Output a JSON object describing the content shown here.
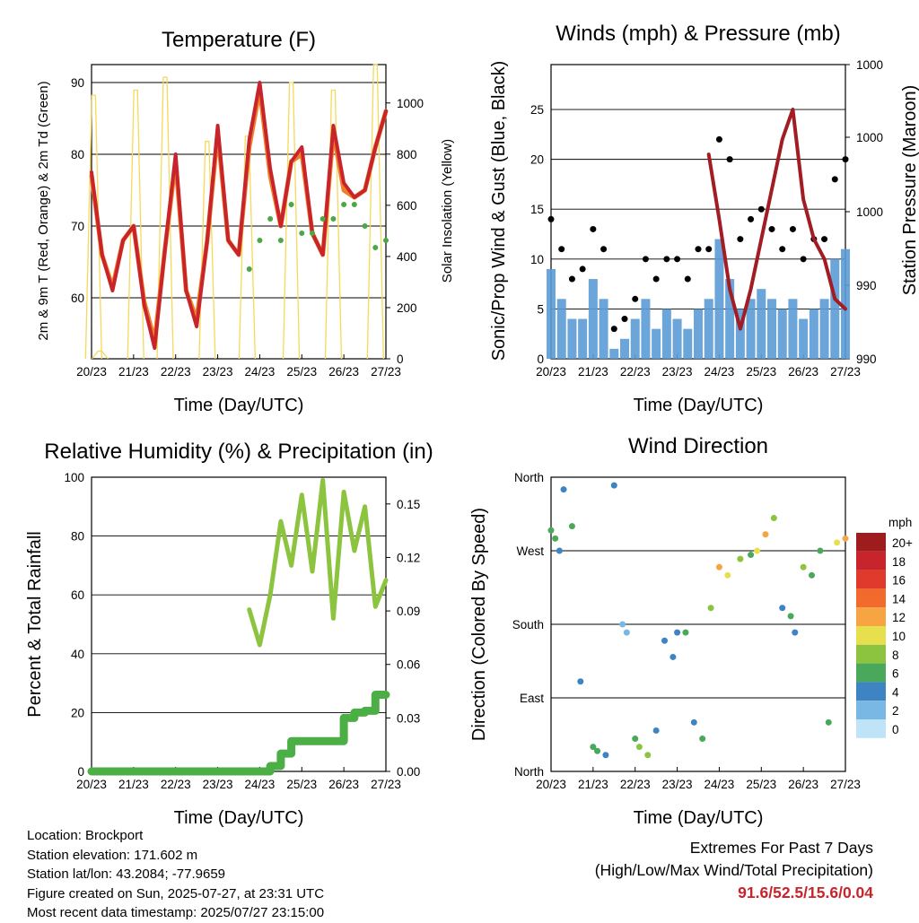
{
  "x_tick_labels": [
    "20/23",
    "21/23",
    "22/23",
    "23/23",
    "24/23",
    "25/23",
    "26/23",
    "27/23"
  ],
  "panels": {
    "temperature": {
      "title": "Temperature (F)",
      "xlabel": "Time (Day/UTC)",
      "ylabel_left": "2m & 9m T (Red, Orange) & 2m Td (Green)",
      "ylabel_right": "Solar Insolation (Yellow)",
      "left_ticks": [
        "60",
        "70",
        "80",
        "90"
      ],
      "right_ticks": [
        "0",
        "200",
        "400",
        "600",
        "800",
        "1000"
      ]
    },
    "winds": {
      "title": "Winds (mph) & Pressure (mb)",
      "xlabel": "Time (Day/UTC)",
      "ylabel_left": "Sonic/Prop Wind & Gust (Blue, Black)",
      "ylabel_right": "Station Pressure (Maroon)",
      "left_ticks": [
        "0",
        "5",
        "10",
        "15",
        "20",
        "25"
      ],
      "right_ticks": [
        "990",
        "990",
        "1000",
        "1000",
        "1000"
      ]
    },
    "humidity": {
      "title": "Relative Humidity (%) & Precipitation (in)",
      "xlabel": "Time (Day/UTC)",
      "ylabel_left": "Percent & Total Rainfall",
      "left_ticks": [
        "0",
        "20",
        "40",
        "60",
        "80",
        "100"
      ],
      "right_ticks": [
        "0.00",
        "0.03",
        "0.06",
        "0.09",
        "0.12",
        "0.15"
      ]
    },
    "direction": {
      "title": "Wind Direction",
      "xlabel": "Time (Day/UTC)",
      "ylabel_left": "Direction (Colored By Speed)",
      "left_ticks": [
        "North",
        "East",
        "South",
        "West",
        "North"
      ],
      "legend_title": "mph",
      "legend_labels": [
        "20+",
        "18",
        "16",
        "14",
        "12",
        "10",
        "8",
        "6",
        "4",
        "2",
        "0"
      ],
      "legend_colors": [
        "#9e1b1e",
        "#c8242b",
        "#e03a2c",
        "#f26b2c",
        "#f7a543",
        "#e8df4f",
        "#8cc43f",
        "#4aa85a",
        "#3e83c2",
        "#79b8e5",
        "#bfe4f8"
      ]
    }
  },
  "info": {
    "location": "Location: Brockport",
    "elevation": "Station elevation: 171.602 m",
    "latlon": "Station lat/lon: 43.2084; -77.9659",
    "created": "Figure created on Sun, 2025-07-27, at 23:31 UTC",
    "recent": "Most recent data timestamp: 2025/07/27 23:15:00"
  },
  "extremes": {
    "title": "Extremes For Past 7 Days",
    "subtitle": "(High/Low/Max Wind/Total Precipitation)",
    "values": "91.6/52.5/15.6/0.04"
  },
  "colors": {
    "temp_2m": "#c8242b",
    "temp_9m": "#f07f2a",
    "dewpoint": "#4aa845",
    "solar": "#f5d95a",
    "wind": "#5b9bd5",
    "gust": "#000000",
    "pressure": "#a21c24",
    "rh": "#8cc43f",
    "precip": "#4caf45"
  },
  "chart_data": [
    {
      "type": "line",
      "title": "Temperature (F)",
      "xlabel": "Time (Day/UTC)",
      "ylabel": "2m & 9m T (Red, Orange) & 2m Td (Green)",
      "y2label": "Solar Insolation (Yellow)",
      "x": [
        0,
        0.25,
        0.5,
        0.75,
        1,
        1.25,
        1.5,
        1.75,
        2,
        2.25,
        2.5,
        2.75,
        3,
        3.25,
        3.5,
        3.75,
        4,
        4.25,
        4.5,
        4.75,
        5,
        5.25,
        5.5,
        5.75,
        6,
        6.25,
        6.5,
        6.75,
        7
      ],
      "x_tick_labels": [
        "20/23",
        "21/23",
        "22/23",
        "23/23",
        "24/23",
        "25/23",
        "26/23",
        "27/23"
      ],
      "ylim": [
        51.5,
        92.5
      ],
      "y2lim": [
        0,
        1150
      ],
      "series": [
        {
          "name": "2m T",
          "values": [
            77.5,
            66,
            61,
            68,
            70,
            59,
            53,
            67,
            80,
            61,
            56,
            68,
            84,
            68,
            66,
            82,
            90,
            78,
            70,
            79,
            81,
            69,
            66,
            84,
            76,
            74,
            75,
            81,
            86
          ]
        },
        {
          "name": "9m T",
          "values": [
            77,
            66,
            61.5,
            68,
            70,
            59.5,
            54,
            67,
            79,
            61,
            57,
            68,
            83,
            68,
            66,
            81,
            89,
            77,
            70,
            79,
            80,
            69,
            66,
            83,
            75,
            74,
            75,
            81,
            86
          ]
        },
        {
          "name": "2m Td",
          "values": [
            null,
            null,
            null,
            null,
            null,
            null,
            null,
            null,
            null,
            null,
            null,
            null,
            null,
            null,
            null,
            64,
            68,
            71,
            68,
            73,
            69,
            69,
            71,
            71,
            73,
            73,
            70,
            67,
            68
          ]
        }
      ],
      "solar_peaks": [
        {
          "t": 0.05,
          "v": 1030
        },
        {
          "t": 0.2,
          "v": 30
        },
        {
          "t": 1.05,
          "v": 1050
        },
        {
          "t": 1.75,
          "v": 1100
        },
        {
          "t": 2.75,
          "v": 850
        },
        {
          "t": 3.7,
          "v": 870
        },
        {
          "t": 4.75,
          "v": 1080
        },
        {
          "t": 5.75,
          "v": 1050
        },
        {
          "t": 6.75,
          "v": 1150
        }
      ]
    },
    {
      "type": "scatter",
      "title": "Winds (mph) & Pressure (mb)",
      "xlabel": "Time (Day/UTC)",
      "ylabel": "Sonic/Prop Wind & Gust (Blue, Black)",
      "y2label": "Station Pressure (Maroon)",
      "x": [
        0,
        0.25,
        0.5,
        0.75,
        1,
        1.25,
        1.5,
        1.75,
        2,
        2.25,
        2.5,
        2.75,
        3,
        3.25,
        3.5,
        3.75,
        4,
        4.25,
        4.5,
        4.75,
        5,
        5.25,
        5.5,
        5.75,
        6,
        6.25,
        6.5,
        6.75,
        7
      ],
      "x_tick_labels": [
        "20/23",
        "21/23",
        "22/23",
        "23/23",
        "24/23",
        "25/23",
        "26/23",
        "27/23"
      ],
      "ylim": [
        0,
        29.5
      ],
      "series": [
        {
          "name": "Sonic/Prop Wind",
          "values": [
            9,
            6,
            4,
            4,
            8,
            6,
            1,
            2,
            4,
            6,
            3,
            5,
            4,
            3,
            5,
            6,
            12,
            8,
            5,
            6,
            7,
            6,
            5,
            6,
            4,
            5,
            6,
            10,
            11
          ]
        },
        {
          "name": "Gust",
          "values": [
            14,
            11,
            8,
            9,
            13,
            11,
            3,
            4,
            6,
            10,
            8,
            10,
            10,
            8,
            11,
            11,
            22,
            20,
            12,
            14,
            15,
            13,
            11,
            13,
            10,
            12,
            12,
            18,
            20
          ]
        },
        {
          "name": "Station Pressure",
          "values": [
            null,
            null,
            null,
            null,
            null,
            null,
            null,
            null,
            null,
            null,
            null,
            null,
            null,
            null,
            null,
            20.5,
            14,
            7,
            3,
            7,
            12,
            17,
            22,
            25,
            16,
            12,
            10,
            6,
            5
          ]
        }
      ]
    },
    {
      "type": "line",
      "title": "Relative Humidity (%) & Precipitation (in)",
      "xlabel": "Time (Day/UTC)",
      "ylabel": "Percent & Total Rainfall",
      "x": [
        0,
        0.25,
        0.5,
        0.75,
        1,
        1.25,
        1.5,
        1.75,
        2,
        2.25,
        2.5,
        2.75,
        3,
        3.25,
        3.5,
        3.75,
        4,
        4.25,
        4.5,
        4.75,
        5,
        5.25,
        5.5,
        5.75,
        6,
        6.25,
        6.5,
        6.75,
        7
      ],
      "x_tick_labels": [
        "20/23",
        "21/23",
        "22/23",
        "23/23",
        "24/23",
        "25/23",
        "26/23",
        "27/23"
      ],
      "ylim": [
        0,
        100
      ],
      "y2lim": [
        0,
        0.165
      ],
      "series": [
        {
          "name": "Relative Humidity",
          "values": [
            null,
            null,
            null,
            null,
            null,
            null,
            null,
            null,
            null,
            null,
            null,
            null,
            null,
            null,
            null,
            55,
            43,
            60,
            85,
            70,
            94,
            68,
            99,
            52,
            95,
            75,
            90,
            56,
            65
          ]
        },
        {
          "name": "Total Precipitation",
          "values": [
            0,
            0,
            0,
            0,
            0,
            0,
            0,
            0,
            0,
            0,
            0,
            0,
            0,
            0,
            0,
            0,
            0,
            0.003,
            0.01,
            0.017,
            0.017,
            0.017,
            0.017,
            0.017,
            0.03,
            0.033,
            0.034,
            0.043,
            0.043
          ]
        }
      ]
    },
    {
      "type": "scatter",
      "title": "Wind Direction",
      "xlabel": "Time (Day/UTC)",
      "ylabel": "Direction (Colored By Speed)",
      "y_tick_labels": [
        "North",
        "East",
        "South",
        "West",
        "North"
      ],
      "ylim": [
        0,
        360
      ],
      "legend": {
        "title": "mph",
        "labels": [
          "20+",
          "18",
          "16",
          "14",
          "12",
          "10",
          "8",
          "6",
          "4",
          "2",
          "0"
        ]
      },
      "series": [
        {
          "name": "direction",
          "x": [
            0,
            0.1,
            0.2,
            0.3,
            0.5,
            0.7,
            1,
            1.1,
            1.3,
            1.5,
            1.7,
            1.8,
            2,
            2.1,
            2.3,
            2.5,
            2.7,
            2.9,
            3,
            3.2,
            3.4,
            3.6,
            3.8,
            4,
            4.2,
            4.5,
            4.75,
            4.9,
            5.1,
            5.3,
            5.5,
            5.7,
            5.8,
            6,
            6.2,
            6.4,
            6.6,
            6.8,
            7
          ],
          "y": [
            295,
            285,
            270,
            345,
            300,
            110,
            30,
            25,
            20,
            350,
            180,
            170,
            40,
            30,
            20,
            50,
            160,
            140,
            170,
            170,
            60,
            40,
            200,
            250,
            240,
            260,
            265,
            270,
            290,
            310,
            200,
            190,
            170,
            250,
            240,
            270,
            60,
            280,
            285
          ],
          "speed": [
            6,
            5,
            4,
            3,
            5,
            3,
            6,
            5,
            4,
            4,
            2,
            2,
            6,
            8,
            7,
            4,
            3,
            4,
            4,
            5,
            3,
            6,
            7,
            12,
            10,
            8,
            6,
            10,
            11,
            7,
            4,
            5,
            3,
            7,
            5,
            6,
            5,
            10,
            12
          ]
        }
      ]
    }
  ]
}
